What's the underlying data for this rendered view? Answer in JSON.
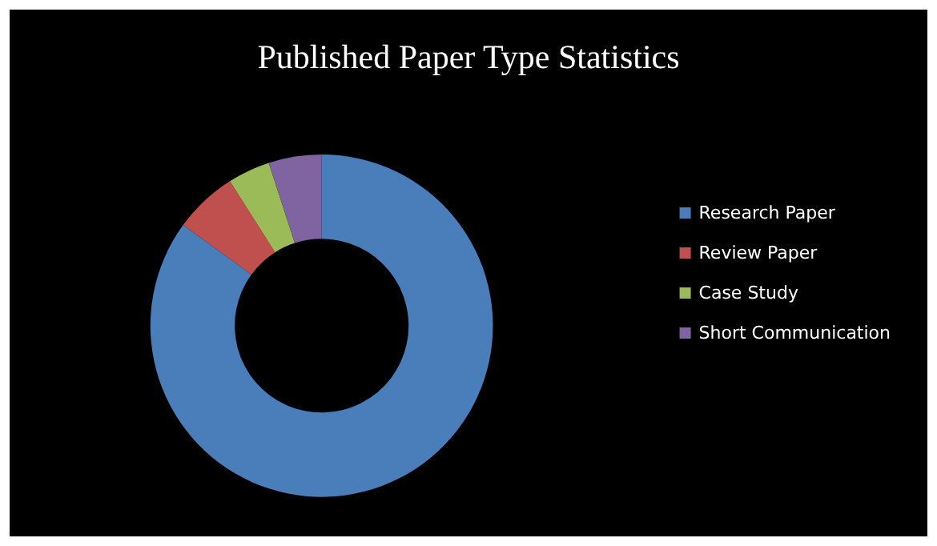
{
  "chart_data": {
    "type": "donut",
    "title": "Published Paper Type Statistics",
    "categories": [
      "Research Paper",
      "Review Paper",
      "Case Study",
      "Short Communication"
    ],
    "values": [
      85,
      6,
      4,
      5
    ],
    "colors": [
      "#4a7ebb",
      "#c0504d",
      "#9bbb59",
      "#8064a2"
    ],
    "legend": "right"
  }
}
